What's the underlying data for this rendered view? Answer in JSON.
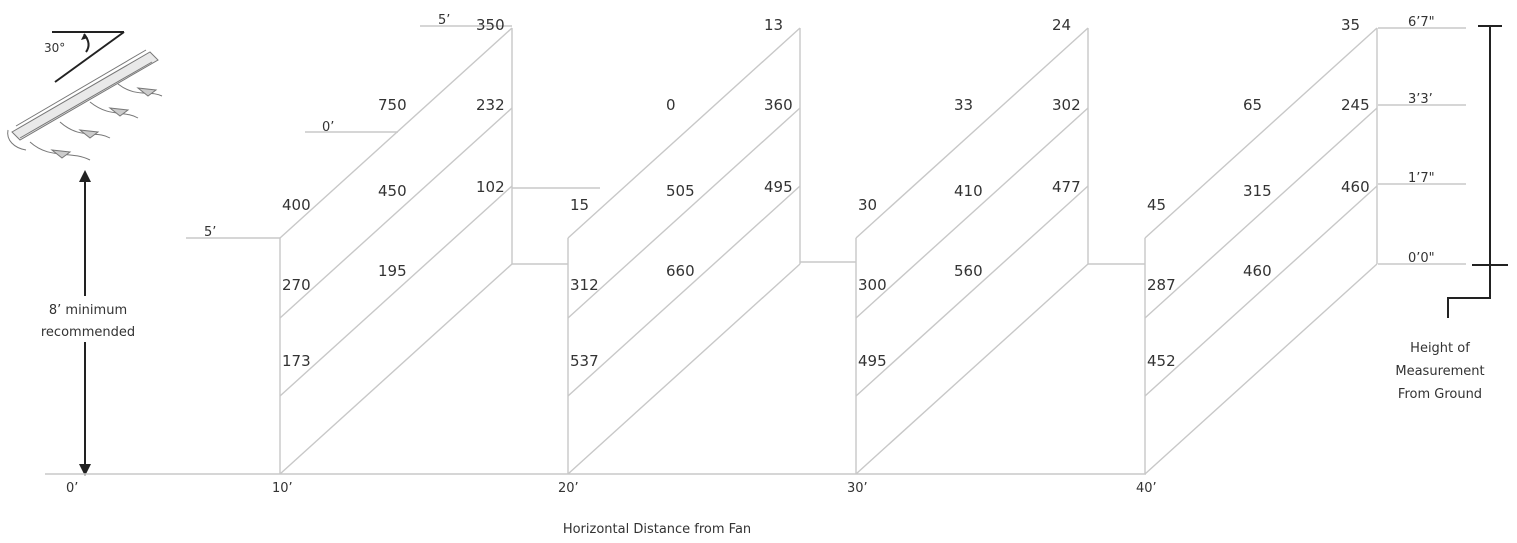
{
  "angle_label": "30°",
  "min_height_label_1": "8’ minimum",
  "min_height_label_2": "recommended",
  "x_axis_title": "Horizontal Distance from Fan",
  "x_ticks": [
    "0’",
    "10’",
    "20’",
    "30’",
    "40’"
  ],
  "level_labels": [
    "5’",
    "0’",
    "5’"
  ],
  "height_labels": [
    "6’7\"",
    "3’3’",
    "1’7\"",
    "0’0\""
  ],
  "height_axis_title": [
    "Height of",
    "Measurement",
    "From Ground"
  ],
  "panels": [
    {
      "distance": "10’",
      "values": [
        "350",
        "232",
        "102",
        "750",
        "450",
        "195",
        "400",
        "270",
        "173"
      ]
    },
    {
      "distance": "20’",
      "values": [
        "13",
        "360",
        "495",
        "0",
        "505",
        "660",
        "15",
        "312",
        "537"
      ]
    },
    {
      "distance": "30’",
      "values": [
        "24",
        "302",
        "477",
        "33",
        "410",
        "560",
        "30",
        "300",
        "495"
      ]
    },
    {
      "distance": "40’",
      "values": [
        "35",
        "245",
        "460",
        "65",
        "315",
        "460",
        "45",
        "287",
        "452"
      ]
    }
  ]
}
